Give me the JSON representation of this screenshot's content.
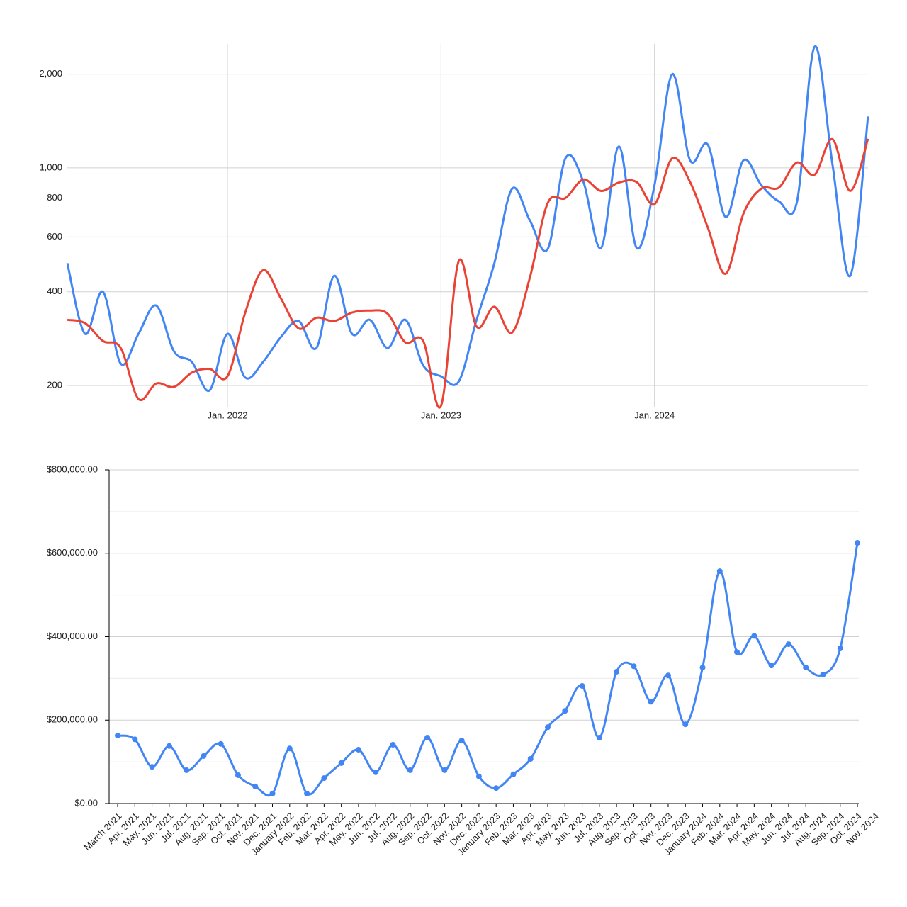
{
  "chart_data": [
    {
      "type": "line",
      "log_scale": true,
      "grid": true,
      "x": [
        "2021-04",
        "2021-05",
        "2021-06",
        "2021-07",
        "2021-08",
        "2021-09",
        "2021-10",
        "2021-11",
        "2021-12",
        "2022-01",
        "2022-02",
        "2022-03",
        "2022-04",
        "2022-05",
        "2022-06",
        "2022-07",
        "2022-08",
        "2022-09",
        "2022-10",
        "2022-11",
        "2022-12",
        "2023-01",
        "2023-02",
        "2023-03",
        "2023-04",
        "2023-05",
        "2023-06",
        "2023-07",
        "2023-08",
        "2023-09",
        "2023-10",
        "2023-11",
        "2023-12",
        "2024-01",
        "2024-02",
        "2024-03",
        "2024-04",
        "2024-05",
        "2024-06",
        "2024-07",
        "2024-08",
        "2024-09",
        "2024-10",
        "2024-11",
        "2024-12",
        "2025-01"
      ],
      "xlim": [
        "2021-04",
        "2025-01"
      ],
      "xticks": [
        {
          "value": "2022-01",
          "label": "Jan. 2022"
        },
        {
          "value": "2023-01",
          "label": "Jan. 2023"
        },
        {
          "value": "2024-01",
          "label": "Jan. 2024"
        }
      ],
      "ylim": [
        170,
        2500
      ],
      "yticks": [
        200,
        400,
        600,
        800,
        {
          "value": 1000,
          "label": "1,000"
        },
        {
          "value": 2000,
          "label": "2,000"
        }
      ],
      "series": [
        {
          "color": "#4285f4",
          "values": [
            494,
            293,
            400,
            235,
            293,
            361,
            257,
            238,
            193,
            293,
            212,
            238,
            286,
            322,
            264,
            450,
            293,
            325,
            264,
            325,
            232,
            214,
            206,
            325,
            494,
            857,
            677,
            549,
            1074,
            903,
            553,
            1172,
            553,
            880,
            2000,
            1057,
            1186,
            695,
            1057,
            880,
            780,
            775,
            2450,
            1028,
            450,
            1462
          ]
        },
        {
          "color": "#ea4335",
          "values": [
            325,
            317,
            278,
            264,
            181,
            203,
            198,
            220,
            226,
            214,
            343,
            469,
            381,
            305,
            330,
            322,
            343,
            348,
            340,
            275,
            278,
            172,
            502,
            309,
            358,
            296,
            445,
            771,
            800,
            917,
            843,
            897,
            900,
            764,
            1074,
            900,
            642,
            457,
            713,
            857,
            865,
            1040,
            951,
            1236,
            843,
            1240
          ]
        }
      ]
    },
    {
      "type": "line",
      "grid": true,
      "minor_grid": true,
      "markers": true,
      "categories": [
        "March 2021",
        "Apr. 2021",
        "May. 2021",
        "Jun. 2021",
        "Jul. 2021",
        "Aug. 2021",
        "Sep. 2021",
        "Oct. 2021",
        "Nov. 2021",
        "Dec. 2021",
        "January 2022",
        "Feb. 2022",
        "Mar. 2022",
        "Apr. 2022",
        "May. 2022",
        "Jun. 2022",
        "Jul. 2022",
        "Aug. 2022",
        "Sep. 2022",
        "Oct. 2022",
        "Nov. 2022",
        "Dec. 2022",
        "January 2023",
        "Feb. 2023",
        "Mar. 2023",
        "Apr. 2023",
        "May. 2023",
        "Jun. 2023",
        "Jul. 2023",
        "Aug. 2023",
        "Sep. 2023",
        "Oct. 2023",
        "Nov. 2023",
        "Dec. 2023",
        "January 2024",
        "Feb. 2024",
        "Mar. 2024",
        "Apr. 2024",
        "May. 2024",
        "Jun. 2024",
        "Jul. 2024",
        "Aug. 2024",
        "Sep. 2024",
        "Oct. 2024",
        "Nov. 2024"
      ],
      "ylim": [
        0,
        800000
      ],
      "yticks": [
        {
          "value": 0,
          "label": "$0.00"
        },
        {
          "value": 200000,
          "label": "$200,000.00"
        },
        {
          "value": 400000,
          "label": "$400,000.00"
        },
        {
          "value": 600000,
          "label": "$600,000.00"
        },
        {
          "value": 800000,
          "label": "$800,000.00"
        }
      ],
      "series": [
        {
          "color": "#4285f4",
          "values": [
            163000,
            154000,
            88000,
            138000,
            80000,
            114000,
            143000,
            68000,
            41000,
            24000,
            132000,
            24000,
            61000,
            97000,
            129000,
            75000,
            141000,
            80000,
            158000,
            80000,
            151000,
            65000,
            37000,
            70000,
            107000,
            183000,
            222000,
            282000,
            158000,
            316000,
            329000,
            244000,
            307000,
            190000,
            326000,
            557000,
            363000,
            402000,
            331000,
            382000,
            326000,
            309000,
            372000,
            625000,
            null
          ]
        }
      ]
    }
  ]
}
